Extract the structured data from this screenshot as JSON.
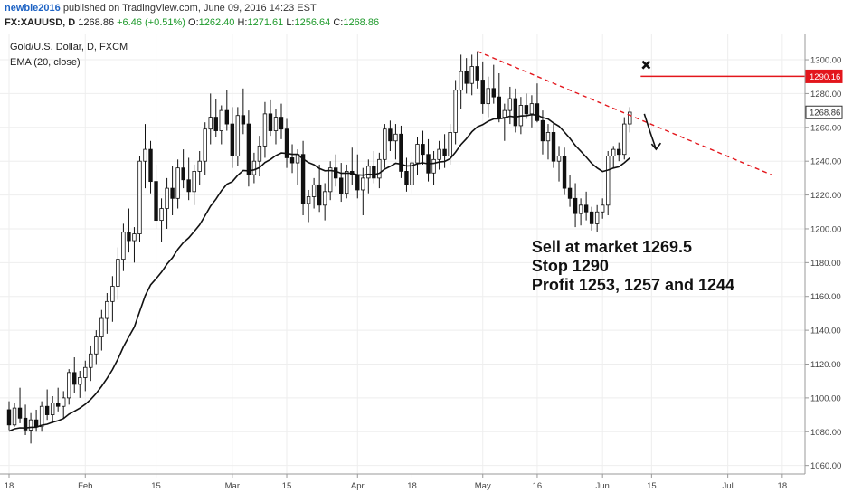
{
  "header": {
    "author": "newbie2016",
    "published_text": "published on TradingView.com, June 09, 2016 14:23 EST",
    "symbol": "FX:XAUUSD, D",
    "last": "1268.86",
    "change": "+6.46 (+0.51%)",
    "o_label": "O:",
    "o_value": "1262.40",
    "h_label": "H:",
    "h_value": "1271.61",
    "l_label": "L:",
    "l_value": "1256.64",
    "c_label": "C:",
    "c_value": "1268.86"
  },
  "chart_data": {
    "type": "candlestick",
    "title": "Gold/U.S. Dollar, D, FXCM",
    "indicator_label": "EMA (20, close)",
    "ylim": [
      1055,
      1315
    ],
    "y_ticks": [
      1060,
      1080,
      1100,
      1120,
      1140,
      1160,
      1180,
      1200,
      1220,
      1240,
      1260,
      1280,
      1300
    ],
    "x_ticks": [
      "18",
      "Feb",
      "15",
      "Mar",
      "15",
      "Apr",
      "18",
      "May",
      "16",
      "Jun",
      "15",
      "Jul",
      "18"
    ],
    "x_tick_positions": [
      0,
      14,
      27,
      41,
      51,
      64,
      74,
      87,
      97,
      109,
      118,
      132,
      142
    ],
    "price_labels": [
      {
        "value": 1290.16,
        "text": "1290.16",
        "color": "#e3161c"
      },
      {
        "value": 1268.86,
        "text": "1268.86",
        "color": "#333333"
      }
    ],
    "ohlc": [
      [
        1093,
        1098,
        1081,
        1084
      ],
      [
        1084,
        1097,
        1083,
        1094
      ],
      [
        1094,
        1106,
        1085,
        1088
      ],
      [
        1088,
        1096,
        1078,
        1081
      ],
      [
        1081,
        1091,
        1073,
        1087
      ],
      [
        1087,
        1093,
        1080,
        1083
      ],
      [
        1083,
        1098,
        1080,
        1095
      ],
      [
        1095,
        1105,
        1087,
        1090
      ],
      [
        1090,
        1101,
        1085,
        1097
      ],
      [
        1097,
        1106,
        1092,
        1095
      ],
      [
        1095,
        1104,
        1088,
        1100
      ],
      [
        1100,
        1117,
        1096,
        1115
      ],
      [
        1115,
        1124,
        1103,
        1108
      ],
      [
        1108,
        1116,
        1100,
        1112
      ],
      [
        1112,
        1122,
        1104,
        1118
      ],
      [
        1118,
        1131,
        1110,
        1126
      ],
      [
        1126,
        1140,
        1120,
        1136
      ],
      [
        1136,
        1152,
        1128,
        1147
      ],
      [
        1147,
        1162,
        1138,
        1157
      ],
      [
        1157,
        1172,
        1145,
        1166
      ],
      [
        1166,
        1189,
        1158,
        1182
      ],
      [
        1182,
        1203,
        1175,
        1198
      ],
      [
        1198,
        1212,
        1186,
        1193
      ],
      [
        1193,
        1201,
        1180,
        1197
      ],
      [
        1197,
        1243,
        1192,
        1240
      ],
      [
        1240,
        1262,
        1224,
        1247
      ],
      [
        1247,
        1252,
        1221,
        1228
      ],
      [
        1228,
        1238,
        1200,
        1205
      ],
      [
        1205,
        1218,
        1192,
        1212
      ],
      [
        1212,
        1230,
        1200,
        1224
      ],
      [
        1224,
        1237,
        1208,
        1218
      ],
      [
        1218,
        1241,
        1212,
        1236
      ],
      [
        1236,
        1247,
        1224,
        1229
      ],
      [
        1229,
        1242,
        1217,
        1222
      ],
      [
        1222,
        1238,
        1214,
        1234
      ],
      [
        1234,
        1246,
        1226,
        1240
      ],
      [
        1240,
        1263,
        1232,
        1259
      ],
      [
        1259,
        1280,
        1250,
        1266
      ],
      [
        1266,
        1277,
        1254,
        1258
      ],
      [
        1258,
        1273,
        1250,
        1270
      ],
      [
        1270,
        1282,
        1258,
        1262
      ],
      [
        1262,
        1272,
        1236,
        1243
      ],
      [
        1243,
        1272,
        1237,
        1267
      ],
      [
        1267,
        1283,
        1256,
        1262
      ],
      [
        1262,
        1270,
        1225,
        1232
      ],
      [
        1232,
        1245,
        1227,
        1240
      ],
      [
        1240,
        1255,
        1231,
        1249
      ],
      [
        1249,
        1275,
        1242,
        1268
      ],
      [
        1268,
        1276,
        1255,
        1258
      ],
      [
        1258,
        1271,
        1250,
        1266
      ],
      [
        1266,
        1274,
        1253,
        1259
      ],
      [
        1259,
        1265,
        1236,
        1242
      ],
      [
        1242,
        1250,
        1233,
        1239
      ],
      [
        1239,
        1247,
        1226,
        1244
      ],
      [
        1244,
        1252,
        1208,
        1215
      ],
      [
        1215,
        1223,
        1204,
        1219
      ],
      [
        1219,
        1230,
        1212,
        1226
      ],
      [
        1226,
        1238,
        1210,
        1214
      ],
      [
        1214,
        1227,
        1205,
        1222
      ],
      [
        1222,
        1240,
        1217,
        1236
      ],
      [
        1236,
        1244,
        1225,
        1230
      ],
      [
        1230,
        1239,
        1216,
        1221
      ],
      [
        1221,
        1238,
        1218,
        1234
      ],
      [
        1234,
        1248,
        1226,
        1232
      ],
      [
        1232,
        1244,
        1218,
        1223
      ],
      [
        1223,
        1236,
        1208,
        1230
      ],
      [
        1230,
        1241,
        1221,
        1237
      ],
      [
        1237,
        1246,
        1227,
        1230
      ],
      [
        1230,
        1245,
        1224,
        1241
      ],
      [
        1241,
        1262,
        1236,
        1259
      ],
      [
        1259,
        1264,
        1246,
        1252
      ],
      [
        1252,
        1262,
        1241,
        1256
      ],
      [
        1256,
        1261,
        1230,
        1234
      ],
      [
        1234,
        1242,
        1222,
        1226
      ],
      [
        1226,
        1243,
        1221,
        1239
      ],
      [
        1239,
        1254,
        1232,
        1250
      ],
      [
        1250,
        1258,
        1238,
        1244
      ],
      [
        1244,
        1253,
        1228,
        1233
      ],
      [
        1233,
        1246,
        1226,
        1241
      ],
      [
        1241,
        1252,
        1235,
        1247
      ],
      [
        1247,
        1256,
        1236,
        1243
      ],
      [
        1243,
        1262,
        1238,
        1257
      ],
      [
        1257,
        1288,
        1250,
        1282
      ],
      [
        1282,
        1303,
        1271,
        1293
      ],
      [
        1293,
        1301,
        1280,
        1286
      ],
      [
        1286,
        1303,
        1279,
        1296
      ],
      [
        1296,
        1305,
        1283,
        1288
      ],
      [
        1288,
        1299,
        1268,
        1274
      ],
      [
        1274,
        1290,
        1266,
        1283
      ],
      [
        1283,
        1297,
        1274,
        1278
      ],
      [
        1278,
        1292,
        1263,
        1266
      ],
      [
        1266,
        1274,
        1252,
        1270
      ],
      [
        1270,
        1284,
        1262,
        1277
      ],
      [
        1277,
        1283,
        1257,
        1261
      ],
      [
        1261,
        1278,
        1256,
        1273
      ],
      [
        1273,
        1280,
        1265,
        1268
      ],
      [
        1268,
        1279,
        1260,
        1274
      ],
      [
        1274,
        1286,
        1263,
        1264
      ],
      [
        1264,
        1270,
        1244,
        1252
      ],
      [
        1252,
        1262,
        1241,
        1257
      ],
      [
        1257,
        1263,
        1236,
        1240
      ],
      [
        1240,
        1249,
        1228,
        1243
      ],
      [
        1243,
        1248,
        1220,
        1224
      ],
      [
        1224,
        1232,
        1213,
        1218
      ],
      [
        1218,
        1227,
        1201,
        1209
      ],
      [
        1209,
        1218,
        1202,
        1214
      ],
      [
        1214,
        1222,
        1205,
        1210
      ],
      [
        1210,
        1213,
        1199,
        1203
      ],
      [
        1203,
        1214,
        1198,
        1210
      ],
      [
        1210,
        1218,
        1206,
        1214
      ],
      [
        1214,
        1246,
        1208,
        1243
      ],
      [
        1243,
        1249,
        1236,
        1247
      ],
      [
        1247,
        1251,
        1240,
        1244
      ],
      [
        1244,
        1266,
        1241,
        1262
      ],
      [
        1262,
        1272,
        1257,
        1269
      ]
    ],
    "ema": {
      "start_value": 1080,
      "period": 20
    },
    "trendline": {
      "from": {
        "bar": 86,
        "price": 1305
      },
      "to": {
        "bar": 140,
        "price": 1232
      },
      "color": "#e3161c",
      "style": "dashed"
    },
    "stop_line": {
      "from_bar": 116,
      "price": 1290.16,
      "color": "#e3161c"
    },
    "stop_marker": {
      "bar": 117,
      "price": 1297
    },
    "arrow": {
      "from_bar": 117,
      "from_price": 1268,
      "to_bar": 119,
      "to_price": 1247
    },
    "annotation": {
      "lines": [
        "Sell at market 1269.5",
        "Stop 1290",
        "Profit 1253, 1257 and 1244"
      ],
      "bar": 96,
      "price": 1186
    }
  }
}
